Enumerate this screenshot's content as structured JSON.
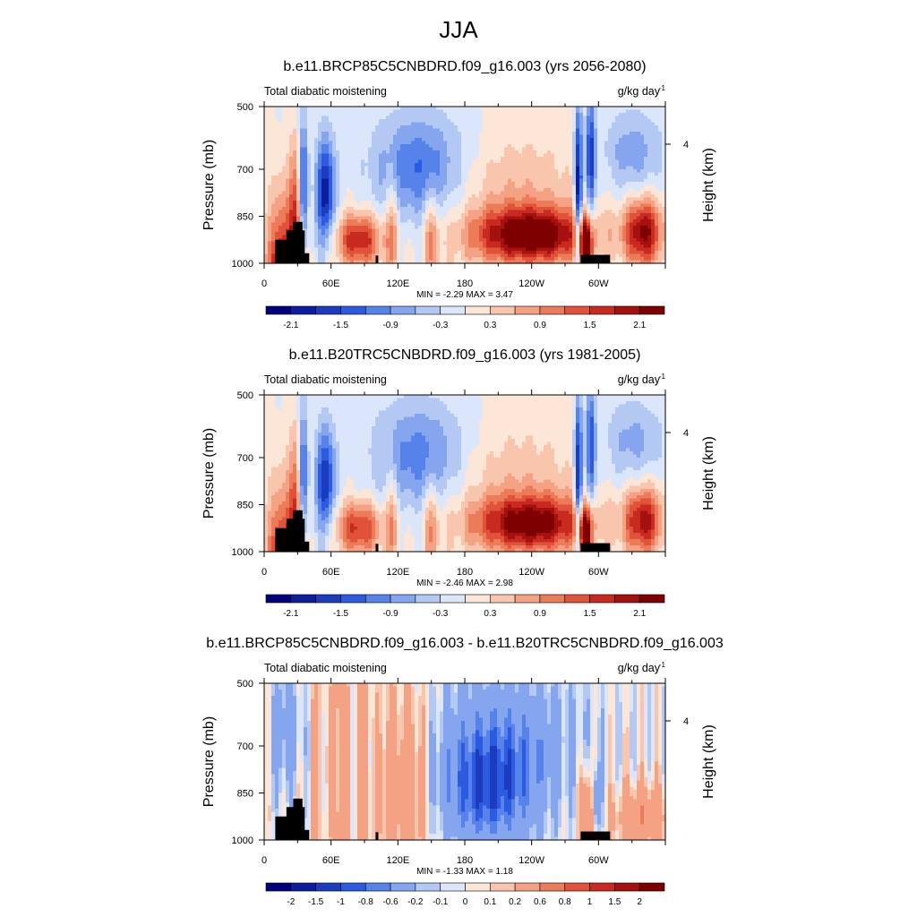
{
  "main_title": "JJA",
  "colors": {
    "cb_field": [
      "#00007f",
      "#0c1d9e",
      "#1c3cc0",
      "#2c5ae0",
      "#5583e9",
      "#85a6ef",
      "#b3c9f4",
      "#dbe6fa",
      "#fbe6d8",
      "#f9c6ad",
      "#f4a283",
      "#ec7b5a",
      "#e0523a",
      "#c92a1f",
      "#a4110f",
      "#7f0000"
    ],
    "cb_diff": [
      "#00007f",
      "#0c1d9e",
      "#1c3cc0",
      "#2c5ae0",
      "#5583e9",
      "#85a6ef",
      "#b3c9f4",
      "#dbe6fa",
      "#fbe6d8",
      "#f9c6ad",
      "#f4a283",
      "#ec7b5a",
      "#e0523a",
      "#c92a1f",
      "#a4110f",
      "#7f0000"
    ],
    "terrain": "#000000"
  },
  "chart_data": [
    {
      "type": "heatmap",
      "title": "b.e11.BRCP85C5CNBDRD.f09_g16.003 (yrs 2056-2080)",
      "left_string": "Total diabatic moistening",
      "right_string": "g/kg day",
      "right_string_sup": "-1",
      "ylabel": "Pressure (mb)",
      "y2label": "Height (km)",
      "y2ticks": [
        "4"
      ],
      "xticks": [
        "0",
        "60E",
        "120E",
        "180",
        "120W",
        "60W"
      ],
      "yticks": [
        "500",
        "700",
        "850",
        "1000"
      ],
      "stats": "MIN =  -2.29  MAX =   3.47",
      "colorbar_labels": [
        "-2.1",
        "-1.5",
        "-0.9",
        "-0.3",
        "0.3",
        "0.9",
        "1.5",
        "2.1"
      ],
      "field_min": -2.29,
      "field_max": 3.47
    },
    {
      "type": "heatmap",
      "title": "b.e11.B20TRC5CNBDRD.f09_g16.003 (yrs 1981-2005)",
      "left_string": "Total diabatic moistening",
      "right_string": "g/kg day",
      "right_string_sup": "-1",
      "ylabel": "Pressure (mb)",
      "y2label": "Height (km)",
      "y2ticks": [
        "4"
      ],
      "xticks": [
        "0",
        "60E",
        "120E",
        "180",
        "120W",
        "60W"
      ],
      "yticks": [
        "500",
        "700",
        "850",
        "1000"
      ],
      "stats": "MIN =  -2.46  MAX =   2.98",
      "colorbar_labels": [
        "-2.1",
        "-1.5",
        "-0.9",
        "-0.3",
        "0.3",
        "0.9",
        "1.5",
        "2.1"
      ],
      "field_min": -2.46,
      "field_max": 2.98
    },
    {
      "type": "heatmap",
      "title": "b.e11.BRCP85C5CNBDRD.f09_g16.003 - b.e11.B20TRC5CNBDRD.f09_g16.003",
      "left_string": "Total diabatic moistening",
      "right_string": "g/kg day",
      "right_string_sup": "-1",
      "ylabel": "Pressure (mb)",
      "y2label": "Height (km)",
      "y2ticks": [
        "4"
      ],
      "xticks": [
        "0",
        "60E",
        "120E",
        "180",
        "120W",
        "60W"
      ],
      "yticks": [
        "500",
        "700",
        "850",
        "1000"
      ],
      "stats": "MIN =  -1.33  MAX =   1.18",
      "colorbar_labels": [
        "-2",
        "-1.5",
        "-1",
        "-0.8",
        "-0.6",
        "-0.2",
        "-0.1",
        "0",
        "0.1",
        "0.2",
        "0.6",
        "0.8",
        "1",
        "1.5",
        "2"
      ],
      "field_min": -1.33,
      "field_max": 1.18
    }
  ]
}
